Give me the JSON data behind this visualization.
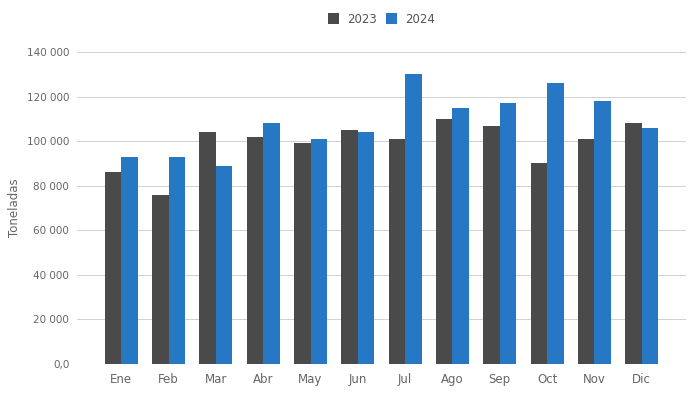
{
  "months": [
    "Ene",
    "Feb",
    "Mar",
    "Abr",
    "May",
    "Jun",
    "Jul",
    "Ago",
    "Sep",
    "Oct",
    "Nov",
    "Dic"
  ],
  "data_2023": [
    86000,
    76000,
    104000,
    102000,
    99000,
    105000,
    101000,
    110000,
    107000,
    90000,
    101000,
    108000
  ],
  "data_2024": [
    93000,
    93000,
    89000,
    108000,
    101000,
    104000,
    130000,
    115000,
    117000,
    126000,
    118000,
    106000
  ],
  "color_2023": "#4a4a4a",
  "color_2024": "#2778c4",
  "ylabel": "Toneladas",
  "legend_2023": "2023",
  "legend_2024": "2024",
  "ylim": [
    0,
    140000
  ],
  "yticks": [
    0,
    20000,
    40000,
    60000,
    80000,
    100000,
    120000,
    140000
  ],
  "ytick_labels": [
    "0,0",
    "20 000",
    "40 000",
    "60 000",
    "80 000",
    "100 000",
    "120 000",
    "140 000"
  ],
  "background_color": "#ffffff",
  "grid_color": "#d0d0d0",
  "bar_width": 0.35,
  "figsize": [
    7.0,
    4.0
  ],
  "dpi": 100
}
